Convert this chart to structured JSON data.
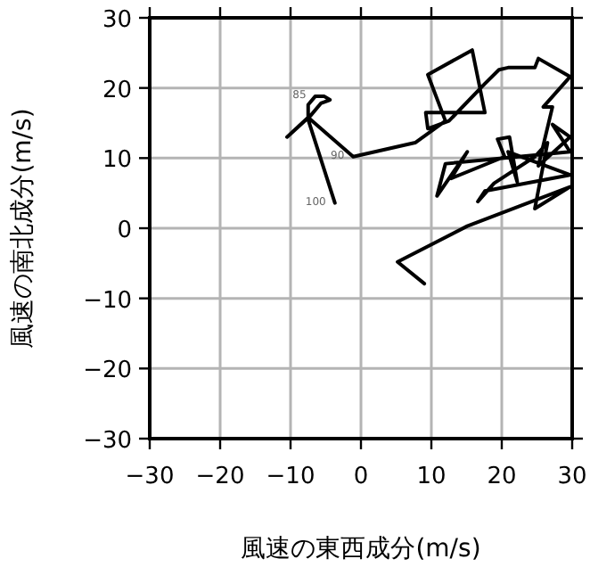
{
  "chart_data": {
    "type": "line",
    "xlabel": "風速の東西成分(m/s)",
    "ylabel": "風速の南北成分(m/s)",
    "xlim": [
      -30,
      30
    ],
    "ylim": [
      -30,
      30
    ],
    "xticks": [
      -30,
      -20,
      -10,
      0,
      10,
      20,
      30
    ],
    "yticks": [
      -30,
      -20,
      -10,
      0,
      10,
      20,
      30
    ],
    "grid": true,
    "marker": "none",
    "line_style": "solid",
    "annotations": [
      {
        "text": "85",
        "x": -6.5,
        "y": 18.8
      },
      {
        "text": "90",
        "x": -1.1,
        "y": 10.2
      },
      {
        "text": "100",
        "x": -3.7,
        "y": 3.6
      }
    ],
    "series": [
      {
        "color": "#000000",
        "x": [
          -3.7,
          -7.5,
          -7.5,
          -6.5,
          -5.2,
          -4.4,
          -5.7,
          -7.2,
          -10.5,
          -7.5,
          -1.1,
          7.7,
          12.0,
          9.5,
          15.8,
          17.6,
          9.2,
          9.5,
          12.5,
          17.6,
          19.6,
          20.9,
          24.7,
          25.2,
          29.7,
          25.9,
          27.2,
          25.2,
          29.7,
          27.2,
          29.7,
          12.0,
          10.8,
          15.1,
          12.8,
          20.4,
          19.4,
          21.1,
          22.2,
          20.9,
          29.7,
          17.6,
          16.6,
          18.9,
          24.7,
          26.5,
          24.7,
          29.7,
          15.1,
          5.2,
          9.0
        ],
        "values": [
          3.6,
          15.5,
          17.6,
          18.8,
          18.8,
          18.3,
          17.8,
          16.0,
          13.0,
          15.8,
          10.2,
          12.2,
          15.3,
          21.9,
          25.4,
          16.5,
          16.5,
          14.2,
          15.3,
          20.6,
          22.6,
          22.9,
          22.9,
          24.2,
          21.6,
          17.3,
          17.3,
          8.9,
          13.0,
          14.8,
          10.9,
          9.2,
          4.6,
          10.9,
          7.1,
          10.2,
          12.7,
          13.0,
          6.6,
          10.9,
          7.6,
          5.3,
          3.8,
          6.4,
          10.2,
          12.2,
          2.8,
          5.9,
          0.3,
          -4.8,
          -7.9
        ]
      }
    ]
  }
}
